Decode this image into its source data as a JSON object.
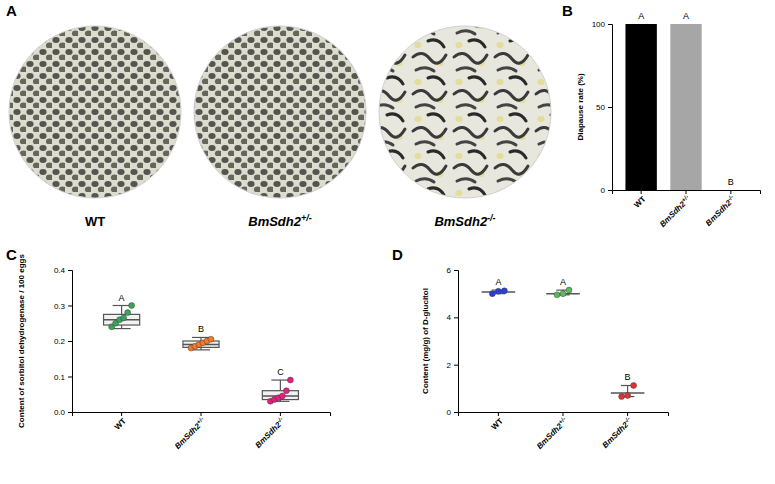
{
  "image_panel": {
    "panel_label": "A",
    "labels": [
      "WT",
      "BmSdh2+/-",
      "BmSdh2-/-"
    ]
  },
  "chart_data": [
    {
      "type": "bar",
      "panel_label": "B",
      "y_label": "Diapause rate (%)",
      "categories": [
        "WT",
        "BmSdh2+/-",
        "BmSdh2-/-"
      ],
      "values": [
        100,
        100,
        0
      ],
      "colors": [
        "#000000",
        "#a6a6a6",
        "#808080"
      ],
      "significance": [
        "A",
        "A",
        "B"
      ],
      "ylim": [
        0,
        100
      ],
      "yticks": [
        0,
        50,
        100
      ]
    },
    {
      "type": "box",
      "panel_label": "C",
      "y_label": "Content of sorbitol dehydrogenase / 100 eggs",
      "categories": [
        "WT",
        "BmSdh2+/-",
        "BmSdh2-/-"
      ],
      "boxes": [
        {
          "min": 0.235,
          "q1": 0.245,
          "median": 0.26,
          "q3": 0.275,
          "max": 0.3
        },
        {
          "min": 0.175,
          "q1": 0.182,
          "median": 0.19,
          "q3": 0.2,
          "max": 0.21
        },
        {
          "min": 0.03,
          "q1": 0.035,
          "median": 0.045,
          "q3": 0.06,
          "max": 0.09
        }
      ],
      "points": [
        [
          0.24,
          0.25,
          0.26,
          0.265,
          0.28,
          0.3
        ],
        [
          0.18,
          0.185,
          0.19,
          0.195,
          0.2,
          0.205
        ],
        [
          0.03,
          0.035,
          0.04,
          0.045,
          0.06,
          0.09
        ]
      ],
      "colors": [
        "#3aa35a",
        "#f07a2a",
        "#e0227a"
      ],
      "significance": [
        "A",
        "B",
        "C"
      ],
      "ylim": [
        0,
        0.4
      ],
      "yticks": [
        {
          "value": 0,
          "label": "0.0"
        },
        0.1,
        0.2,
        0.3,
        0.4
      ]
    },
    {
      "type": "range",
      "panel_label": "D",
      "y_label": "Content (mg/g) of D-glucitol",
      "categories": [
        "WT",
        "BmSdh2+/-",
        "BmSdh2-/-"
      ],
      "summary": [
        {
          "center": 5.07,
          "low": 5.0,
          "high": 5.15
        },
        {
          "center": 5.0,
          "low": 4.95,
          "high": 5.15
        },
        {
          "center": 0.8,
          "low": 0.65,
          "high": 1.12
        }
      ],
      "points": [
        [
          5.0,
          5.1,
          5.12
        ],
        [
          4.95,
          5.0,
          5.15
        ],
        [
          0.65,
          0.7,
          1.12
        ]
      ],
      "colors": [
        "#2b3fd6",
        "#5cb85c",
        "#e03030"
      ],
      "significance": [
        "A",
        "A",
        "B"
      ],
      "ylim": [
        0,
        6
      ],
      "yticks": [
        0,
        2,
        4,
        6
      ]
    }
  ]
}
